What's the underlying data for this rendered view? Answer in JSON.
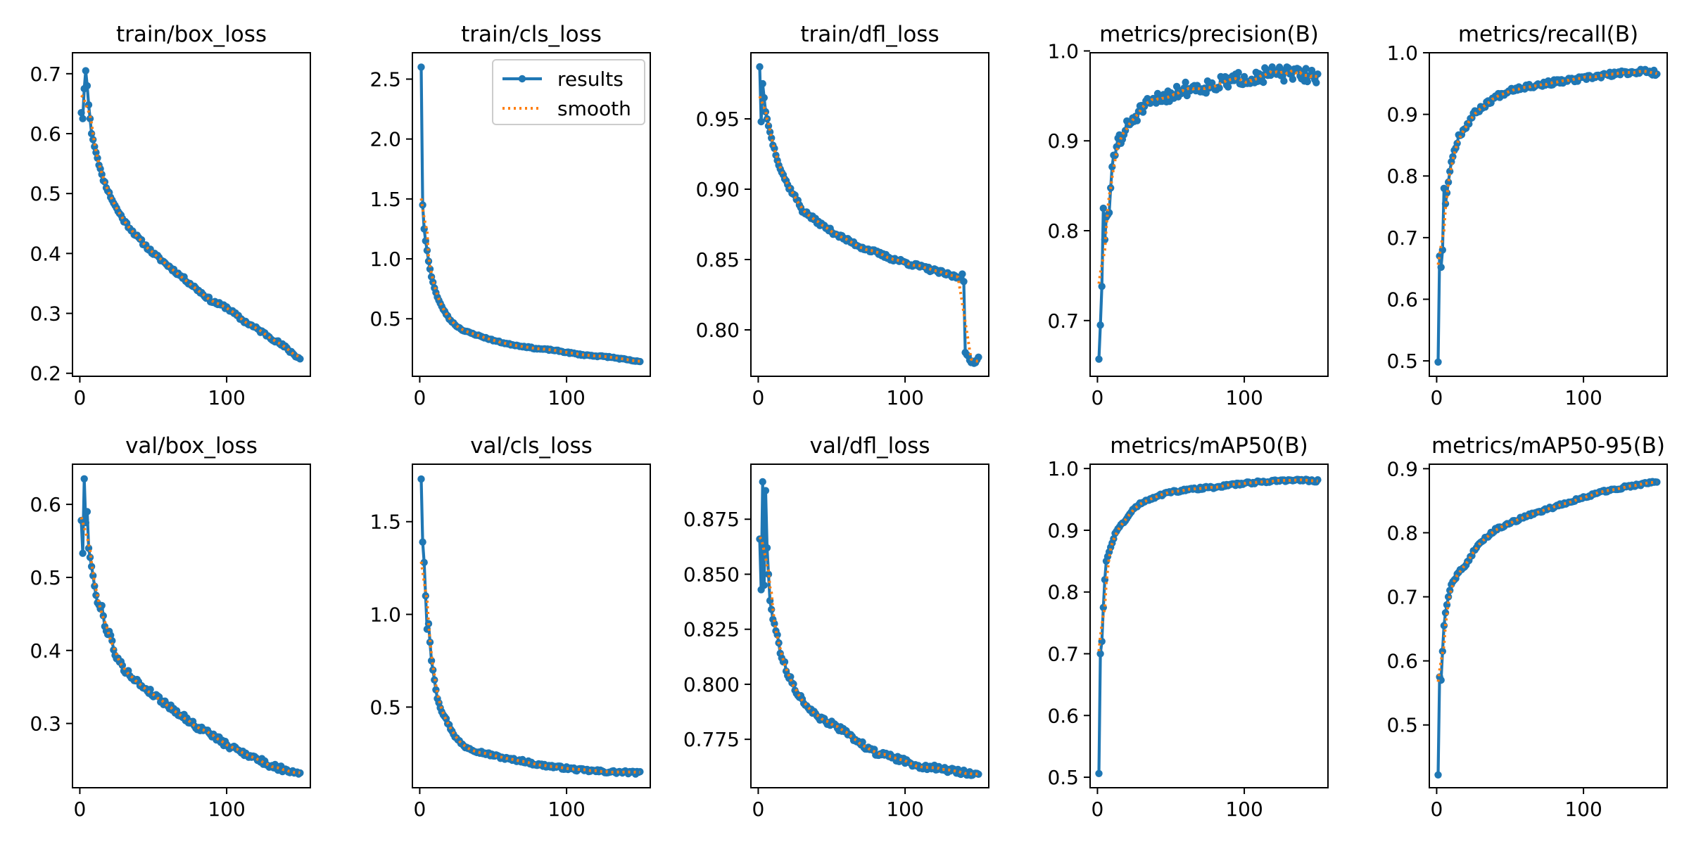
{
  "colors": {
    "results": "#1f77b4",
    "smooth": "#ff7f0e",
    "axes": "#000000",
    "background": "#ffffff"
  },
  "legend": {
    "placement": "upper-right",
    "panel": "train/cls_loss",
    "results_label": "results",
    "smooth_label": "smooth"
  },
  "chart_data": [
    {
      "type": "line",
      "title": "train/box_loss",
      "xlabel": "",
      "ylabel": "",
      "xlim": [
        -5,
        157
      ],
      "ylim": [
        0.195,
        0.735
      ],
      "xticks": [
        0,
        100
      ],
      "yticks": [
        0.2,
        0.3,
        0.4,
        0.5,
        0.6,
        0.7
      ],
      "ytick_decimals": 1,
      "x": [
        1,
        150
      ],
      "start": 0.635,
      "end": 0.224,
      "curve": 0.85,
      "anchors": [
        [
          1,
          0.635
        ],
        [
          2,
          0.625
        ],
        [
          3,
          0.675
        ],
        [
          4,
          0.705
        ],
        [
          5,
          0.68
        ],
        [
          6,
          0.648
        ],
        [
          7,
          0.625
        ],
        [
          8,
          0.6
        ],
        [
          10,
          0.58
        ],
        [
          12,
          0.56
        ],
        [
          15,
          0.53
        ],
        [
          20,
          0.5
        ],
        [
          25,
          0.475
        ],
        [
          30,
          0.455
        ],
        [
          40,
          0.425
        ],
        [
          50,
          0.4
        ],
        [
          60,
          0.38
        ],
        [
          70,
          0.36
        ],
        [
          80,
          0.34
        ],
        [
          90,
          0.32
        ],
        [
          100,
          0.31
        ],
        [
          110,
          0.29
        ],
        [
          120,
          0.275
        ],
        [
          130,
          0.26
        ],
        [
          140,
          0.243
        ],
        [
          150,
          0.224
        ]
      ],
      "noise": 0.003,
      "seed": 11
    },
    {
      "type": "line",
      "title": "train/cls_loss",
      "xlabel": "",
      "ylabel": "",
      "xlim": [
        -5,
        157
      ],
      "ylim": [
        0.02,
        2.72
      ],
      "xticks": [
        0,
        100
      ],
      "yticks": [
        0.5,
        1.0,
        1.5,
        2.0,
        2.5
      ],
      "ytick_decimals": 1,
      "x": [
        1,
        150
      ],
      "start": 2.6,
      "end": 0.14,
      "curve": 0.85,
      "anchors": [
        [
          1,
          2.6
        ],
        [
          2,
          1.45
        ],
        [
          3,
          1.25
        ],
        [
          4,
          1.15
        ],
        [
          5,
          1.07
        ],
        [
          6,
          0.98
        ],
        [
          8,
          0.85
        ],
        [
          10,
          0.76
        ],
        [
          12,
          0.68
        ],
        [
          15,
          0.6
        ],
        [
          20,
          0.5
        ],
        [
          25,
          0.44
        ],
        [
          30,
          0.4
        ],
        [
          40,
          0.36
        ],
        [
          50,
          0.32
        ],
        [
          60,
          0.29
        ],
        [
          70,
          0.27
        ],
        [
          80,
          0.25
        ],
        [
          90,
          0.24
        ],
        [
          100,
          0.22
        ],
        [
          110,
          0.2
        ],
        [
          120,
          0.19
        ],
        [
          130,
          0.18
        ],
        [
          140,
          0.16
        ],
        [
          150,
          0.14
        ]
      ],
      "noise": 0.005,
      "seed": 23
    },
    {
      "type": "line",
      "title": "train/dfl_loss",
      "xlabel": "",
      "ylabel": "",
      "xlim": [
        -5,
        157
      ],
      "ylim": [
        0.767,
        0.997
      ],
      "xticks": [
        0,
        100
      ],
      "yticks": [
        0.8,
        0.85,
        0.9,
        0.95
      ],
      "ytick_decimals": 2,
      "x": [
        1,
        150
      ],
      "start": 0.987,
      "end": 0.78,
      "curve": 0.85,
      "anchors": [
        [
          1,
          0.987
        ],
        [
          2,
          0.948
        ],
        [
          3,
          0.975
        ],
        [
          4,
          0.965
        ],
        [
          5,
          0.955
        ],
        [
          7,
          0.945
        ],
        [
          10,
          0.932
        ],
        [
          15,
          0.915
        ],
        [
          20,
          0.903
        ],
        [
          25,
          0.895
        ],
        [
          30,
          0.885
        ],
        [
          40,
          0.877
        ],
        [
          50,
          0.87
        ],
        [
          60,
          0.864
        ],
        [
          70,
          0.859
        ],
        [
          80,
          0.855
        ],
        [
          90,
          0.851
        ],
        [
          100,
          0.848
        ],
        [
          110,
          0.845
        ],
        [
          120,
          0.842
        ],
        [
          130,
          0.839
        ],
        [
          138,
          0.837
        ],
        [
          139,
          0.841
        ],
        [
          140,
          0.835
        ],
        [
          141,
          0.783
        ],
        [
          143,
          0.78
        ],
        [
          145,
          0.777
        ],
        [
          148,
          0.778
        ],
        [
          150,
          0.78
        ]
      ],
      "noise": 0.0015,
      "seed": 37
    },
    {
      "type": "line",
      "title": "metrics/precision(B)",
      "xlabel": "",
      "ylabel": "",
      "xlim": [
        -5,
        157
      ],
      "ylim": [
        0.638,
        0.998
      ],
      "xticks": [
        0,
        100
      ],
      "yticks": [
        0.7,
        0.8,
        0.9,
        1.0
      ],
      "ytick_decimals": 1,
      "x": [
        1,
        150
      ],
      "start": 0.657,
      "end": 0.972,
      "curve": 0.85,
      "anchors": [
        [
          1,
          0.657
        ],
        [
          2,
          0.695
        ],
        [
          3,
          0.738
        ],
        [
          4,
          0.825
        ],
        [
          5,
          0.79
        ],
        [
          6,
          0.815
        ],
        [
          8,
          0.82
        ],
        [
          10,
          0.875
        ],
        [
          12,
          0.88
        ],
        [
          14,
          0.905
        ],
        [
          16,
          0.9
        ],
        [
          20,
          0.915
        ],
        [
          25,
          0.925
        ],
        [
          30,
          0.935
        ],
        [
          40,
          0.945
        ],
        [
          50,
          0.952
        ],
        [
          60,
          0.958
        ],
        [
          70,
          0.96
        ],
        [
          80,
          0.962
        ],
        [
          90,
          0.966
        ],
        [
          100,
          0.97
        ],
        [
          110,
          0.972
        ],
        [
          120,
          0.975
        ],
        [
          130,
          0.974
        ],
        [
          140,
          0.974
        ],
        [
          150,
          0.972
        ]
      ],
      "noise": 0.008,
      "seed": 51
    },
    {
      "type": "line",
      "title": "metrics/recall(B)",
      "xlabel": "",
      "ylabel": "",
      "xlim": [
        -5,
        157
      ],
      "ylim": [
        0.475,
        1.0
      ],
      "xticks": [
        0,
        100
      ],
      "yticks": [
        0.5,
        0.6,
        0.7,
        0.8,
        0.9,
        1.0
      ],
      "ytick_decimals": 1,
      "x": [
        1,
        150
      ],
      "start": 0.498,
      "end": 0.967,
      "curve": 0.85,
      "anchors": [
        [
          1,
          0.498
        ],
        [
          2,
          0.67
        ],
        [
          3,
          0.652
        ],
        [
          4,
          0.68
        ],
        [
          5,
          0.78
        ],
        [
          6,
          0.755
        ],
        [
          8,
          0.79
        ],
        [
          10,
          0.825
        ],
        [
          12,
          0.84
        ],
        [
          15,
          0.865
        ],
        [
          20,
          0.88
        ],
        [
          25,
          0.9
        ],
        [
          30,
          0.91
        ],
        [
          40,
          0.928
        ],
        [
          50,
          0.94
        ],
        [
          60,
          0.945
        ],
        [
          70,
          0.948
        ],
        [
          80,
          0.952
        ],
        [
          90,
          0.955
        ],
        [
          100,
          0.958
        ],
        [
          110,
          0.962
        ],
        [
          120,
          0.965
        ],
        [
          130,
          0.968
        ],
        [
          140,
          0.97
        ],
        [
          150,
          0.967
        ]
      ],
      "noise": 0.004,
      "seed": 67
    },
    {
      "type": "line",
      "title": "val/box_loss",
      "xlabel": "",
      "ylabel": "",
      "xlim": [
        -5,
        157
      ],
      "ylim": [
        0.212,
        0.655
      ],
      "xticks": [
        0,
        100
      ],
      "yticks": [
        0.3,
        0.4,
        0.5,
        0.6
      ],
      "ytick_decimals": 1,
      "x": [
        1,
        150
      ],
      "start": 0.578,
      "end": 0.232,
      "curve": 0.85,
      "anchors": [
        [
          1,
          0.578
        ],
        [
          2,
          0.533
        ],
        [
          3,
          0.635
        ],
        [
          4,
          0.575
        ],
        [
          5,
          0.59
        ],
        [
          6,
          0.54
        ],
        [
          8,
          0.515
        ],
        [
          10,
          0.49
        ],
        [
          12,
          0.462
        ],
        [
          15,
          0.46
        ],
        [
          18,
          0.425
        ],
        [
          20,
          0.425
        ],
        [
          25,
          0.39
        ],
        [
          30,
          0.375
        ],
        [
          40,
          0.355
        ],
        [
          50,
          0.34
        ],
        [
          60,
          0.325
        ],
        [
          70,
          0.31
        ],
        [
          80,
          0.295
        ],
        [
          90,
          0.285
        ],
        [
          100,
          0.27
        ],
        [
          110,
          0.262
        ],
        [
          120,
          0.252
        ],
        [
          130,
          0.242
        ],
        [
          140,
          0.237
        ],
        [
          150,
          0.232
        ]
      ],
      "noise": 0.004,
      "seed": 79
    },
    {
      "type": "line",
      "title": "val/cls_loss",
      "xlabel": "",
      "ylabel": "",
      "xlim": [
        -5,
        157
      ],
      "ylim": [
        0.065,
        1.81
      ],
      "xticks": [
        0,
        100
      ],
      "yticks": [
        0.5,
        1.0,
        1.5
      ],
      "ytick_decimals": 1,
      "x": [
        1,
        150
      ],
      "start": 1.73,
      "end": 0.145,
      "curve": 0.85,
      "anchors": [
        [
          1,
          1.73
        ],
        [
          2,
          1.39
        ],
        [
          3,
          1.28
        ],
        [
          4,
          1.1
        ],
        [
          5,
          0.92
        ],
        [
          6,
          0.95
        ],
        [
          8,
          0.75
        ],
        [
          10,
          0.65
        ],
        [
          12,
          0.55
        ],
        [
          15,
          0.48
        ],
        [
          20,
          0.4
        ],
        [
          25,
          0.33
        ],
        [
          30,
          0.29
        ],
        [
          40,
          0.26
        ],
        [
          50,
          0.24
        ],
        [
          60,
          0.22
        ],
        [
          70,
          0.21
        ],
        [
          80,
          0.19
        ],
        [
          90,
          0.18
        ],
        [
          100,
          0.17
        ],
        [
          110,
          0.16
        ],
        [
          120,
          0.155
        ],
        [
          130,
          0.15
        ],
        [
          140,
          0.148
        ],
        [
          150,
          0.145
        ]
      ],
      "noise": 0.008,
      "seed": 97
    },
    {
      "type": "line",
      "title": "val/dfl_loss",
      "xlabel": "",
      "ylabel": "",
      "xlim": [
        -5,
        157
      ],
      "ylim": [
        0.753,
        0.9
      ],
      "xticks": [
        0,
        100
      ],
      "yticks": [
        0.775,
        0.8,
        0.825,
        0.85,
        0.875
      ],
      "ytick_decimals": 3,
      "x": [
        1,
        150
      ],
      "start": 0.866,
      "end": 0.759,
      "curve": 0.85,
      "anchors": [
        [
          1,
          0.866
        ],
        [
          2,
          0.843
        ],
        [
          3,
          0.892
        ],
        [
          4,
          0.845
        ],
        [
          5,
          0.888
        ],
        [
          6,
          0.862
        ],
        [
          8,
          0.838
        ],
        [
          10,
          0.83
        ],
        [
          12,
          0.825
        ],
        [
          15,
          0.815
        ],
        [
          20,
          0.805
        ],
        [
          25,
          0.798
        ],
        [
          30,
          0.793
        ],
        [
          40,
          0.785
        ],
        [
          50,
          0.782
        ],
        [
          60,
          0.778
        ],
        [
          70,
          0.773
        ],
        [
          80,
          0.769
        ],
        [
          90,
          0.767
        ],
        [
          100,
          0.765
        ],
        [
          110,
          0.763
        ],
        [
          120,
          0.762
        ],
        [
          130,
          0.761
        ],
        [
          140,
          0.76
        ],
        [
          150,
          0.759
        ]
      ],
      "noise": 0.0012,
      "seed": 113
    },
    {
      "type": "line",
      "title": "metrics/mAP50(B)",
      "xlabel": "",
      "ylabel": "",
      "xlim": [
        -5,
        157
      ],
      "ylim": [
        0.483,
        1.007
      ],
      "xticks": [
        0,
        100
      ],
      "yticks": [
        0.5,
        0.6,
        0.7,
        0.8,
        0.9,
        1.0
      ],
      "ytick_decimals": 1,
      "x": [
        1,
        150
      ],
      "start": 0.506,
      "end": 0.98,
      "curve": 0.85,
      "anchors": [
        [
          1,
          0.506
        ],
        [
          2,
          0.7
        ],
        [
          3,
          0.72
        ],
        [
          4,
          0.775
        ],
        [
          5,
          0.82
        ],
        [
          6,
          0.85
        ],
        [
          8,
          0.865
        ],
        [
          10,
          0.88
        ],
        [
          12,
          0.895
        ],
        [
          15,
          0.905
        ],
        [
          20,
          0.92
        ],
        [
          25,
          0.935
        ],
        [
          30,
          0.945
        ],
        [
          40,
          0.955
        ],
        [
          50,
          0.962
        ],
        [
          60,
          0.965
        ],
        [
          70,
          0.968
        ],
        [
          80,
          0.97
        ],
        [
          90,
          0.973
        ],
        [
          100,
          0.976
        ],
        [
          110,
          0.978
        ],
        [
          120,
          0.98
        ],
        [
          130,
          0.981
        ],
        [
          140,
          0.981
        ],
        [
          150,
          0.98
        ]
      ],
      "noise": 0.002,
      "seed": 131
    },
    {
      "type": "line",
      "title": "metrics/mAP50-95(B)",
      "xlabel": "",
      "ylabel": "",
      "xlim": [
        -5,
        157
      ],
      "ylim": [
        0.402,
        0.907
      ],
      "xticks": [
        0,
        100
      ],
      "yticks": [
        0.5,
        0.6,
        0.7,
        0.8,
        0.9
      ],
      "ytick_decimals": 1,
      "x": [
        1,
        150
      ],
      "start": 0.422,
      "end": 0.88,
      "curve": 0.85,
      "anchors": [
        [
          1,
          0.422
        ],
        [
          2,
          0.575
        ],
        [
          3,
          0.57
        ],
        [
          4,
          0.615
        ],
        [
          5,
          0.655
        ],
        [
          6,
          0.675
        ],
        [
          8,
          0.7
        ],
        [
          10,
          0.72
        ],
        [
          12,
          0.725
        ],
        [
          15,
          0.74
        ],
        [
          20,
          0.75
        ],
        [
          25,
          0.77
        ],
        [
          30,
          0.785
        ],
        [
          40,
          0.805
        ],
        [
          50,
          0.815
        ],
        [
          60,
          0.825
        ],
        [
          70,
          0.833
        ],
        [
          80,
          0.84
        ],
        [
          90,
          0.848
        ],
        [
          100,
          0.855
        ],
        [
          110,
          0.862
        ],
        [
          120,
          0.868
        ],
        [
          130,
          0.872
        ],
        [
          140,
          0.876
        ],
        [
          150,
          0.88
        ]
      ],
      "noise": 0.002,
      "seed": 149
    }
  ]
}
